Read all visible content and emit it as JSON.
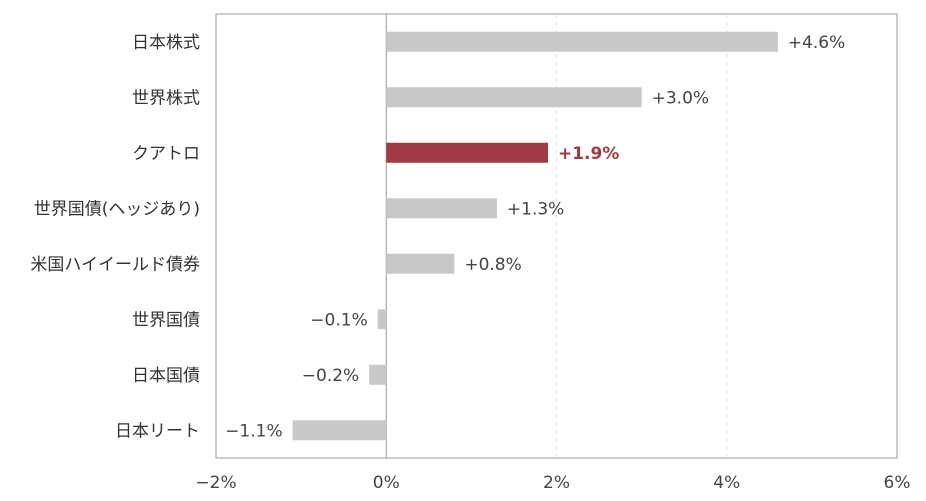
{
  "chart_data": {
    "type": "bar",
    "orientation": "horizontal",
    "categories": [
      "日本株式",
      "世界株式",
      "クアトロ",
      "世界国債(ヘッジあり)",
      "米国ハイイールド債券",
      "世界国債",
      "日本国債",
      "日本リート"
    ],
    "values": [
      4.6,
      3.0,
      1.9,
      1.3,
      0.8,
      -0.1,
      -0.2,
      -1.1
    ],
    "value_labels": [
      "+4.6%",
      "+3.0%",
      "+1.9%",
      "+1.3%",
      "+0.8%",
      "−0.1%",
      "−0.2%",
      "−1.1%"
    ],
    "highlight_category": "クアトロ",
    "xlim": [
      -2,
      6
    ],
    "xticks": [
      -2,
      0,
      2,
      4,
      6
    ],
    "xtick_labels": [
      "−2%",
      "0%",
      "2%",
      "4%",
      "6%"
    ],
    "gridlines": "vertical-dashed",
    "colors": {
      "bar": "#c8c8c8",
      "highlight": "#a03a44",
      "grid": "#dddddd",
      "axis": "#999999"
    },
    "title": "",
    "xlabel": "",
    "ylabel": ""
  }
}
